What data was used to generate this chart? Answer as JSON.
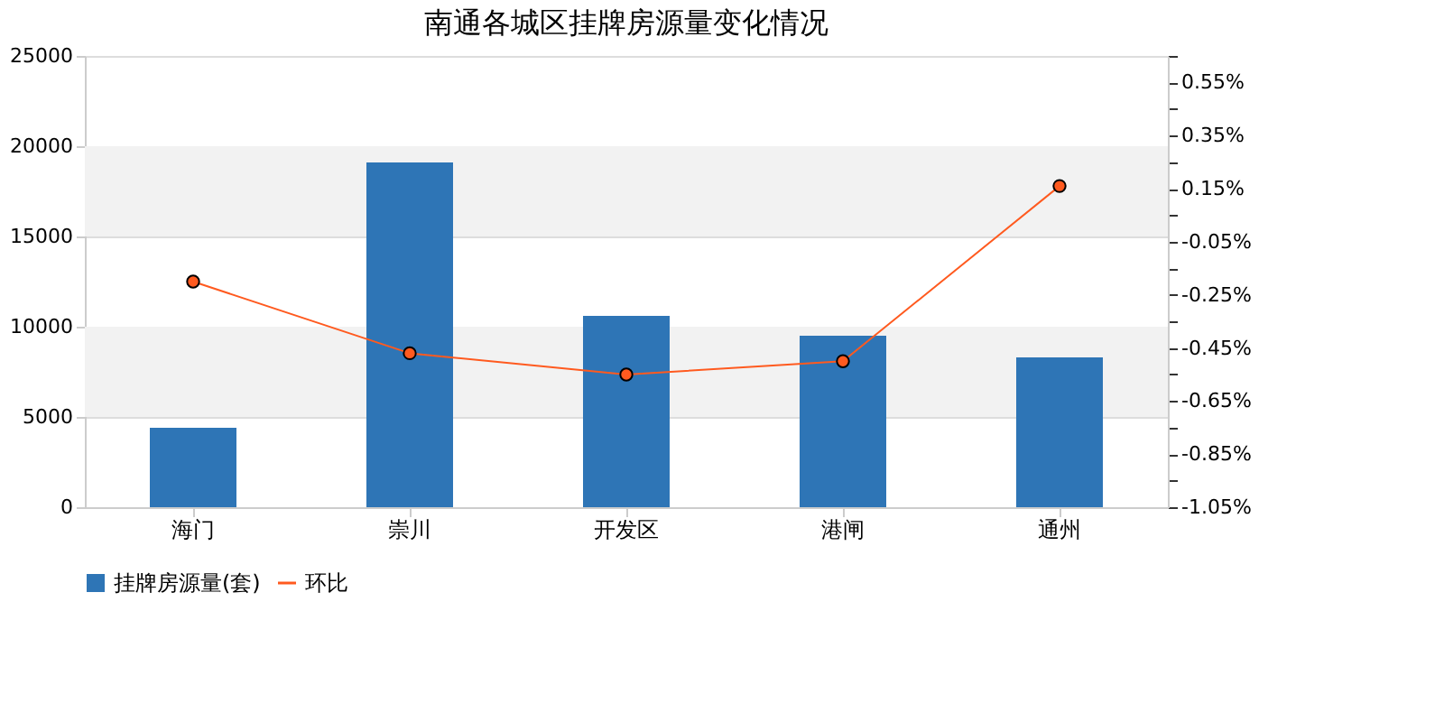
{
  "chart_data": {
    "type": "bar",
    "title": "南通各城区挂牌房源量变化情况",
    "categories": [
      "海门",
      "崇川",
      "开发区",
      "港闸",
      "通州"
    ],
    "series": [
      {
        "name": "挂牌房源量(套)",
        "color": "#2e75b6",
        "values": [
          4400,
          19100,
          10600,
          9500,
          8300
        ]
      },
      {
        "name": "环比",
        "type": "line",
        "axis": "y2",
        "color": "#ff5a1f",
        "marker": "circle",
        "values": [
          -0.2,
          -0.47,
          -0.55,
          -0.5,
          0.16
        ]
      }
    ],
    "ylim": [
      0,
      25000
    ],
    "yticks": [
      0,
      5000,
      10000,
      15000,
      20000,
      25000
    ],
    "y2lim": [
      -1.05,
      0.65
    ],
    "y2ticks": [
      {
        "value": -1.05,
        "label": "-1.05%"
      },
      {
        "value": -0.95,
        "label": null
      },
      {
        "value": -0.85,
        "label": "-0.85%"
      },
      {
        "value": -0.75,
        "label": null
      },
      {
        "value": -0.65,
        "label": "-0.65%"
      },
      {
        "value": -0.55,
        "label": null
      },
      {
        "value": -0.45,
        "label": "-0.45%"
      },
      {
        "value": -0.35,
        "label": null
      },
      {
        "value": -0.25,
        "label": "-0.25%"
      },
      {
        "value": -0.15,
        "label": null
      },
      {
        "value": -0.05,
        "label": "-0.05%"
      },
      {
        "value": 0.05,
        "label": null
      },
      {
        "value": 0.15,
        "label": "0.15%"
      },
      {
        "value": 0.25,
        "label": null
      },
      {
        "value": 0.35,
        "label": "0.35%"
      },
      {
        "value": 0.45,
        "label": null
      },
      {
        "value": 0.55,
        "label": "0.55%"
      },
      {
        "value": 0.65,
        "label": null
      }
    ],
    "bands": [
      {
        "axis": "y",
        "from": 5000,
        "to": 10000,
        "color": "#f2f2f2"
      },
      {
        "axis": "y",
        "from": 15000,
        "to": 20000,
        "color": "#f2f2f2"
      }
    ],
    "grid": "y",
    "legend": "bottom"
  }
}
